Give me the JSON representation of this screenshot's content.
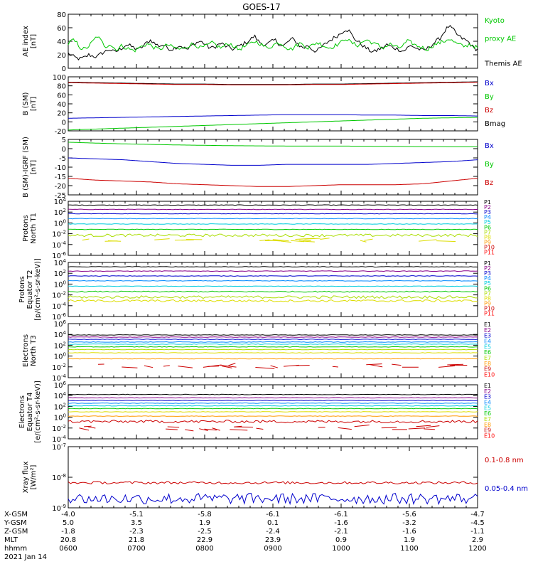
{
  "title": "GOES-17",
  "colors": {
    "black": "#000000",
    "green": "#00c800",
    "blue": "#0000cc",
    "red": "#cc0000",
    "cyan": "#00bbdd",
    "yellow": "#dddd00",
    "orange": "#ff9900"
  },
  "chart_data": [
    {
      "type": "line",
      "id": "ae",
      "ylabel": "AE index\n[nT]",
      "ylim": [
        0,
        80
      ],
      "yticks": [
        "0",
        "20",
        "40",
        "60",
        "80"
      ],
      "ytick_values": [
        0,
        20,
        40,
        60,
        80
      ],
      "legend": [
        {
          "text": "Kyoto",
          "color": "#00c800"
        },
        {
          "text": "proxy AE",
          "color": "#00c800"
        },
        {
          "text": "Themis AE",
          "color": "#000000"
        }
      ],
      "series": [
        {
          "name": "Themis AE",
          "color": "#000000",
          "kind": "noisy",
          "values": [
            22,
            18,
            15,
            14,
            16,
            20,
            18,
            17,
            22,
            25,
            28,
            24,
            26,
            30,
            35,
            33,
            30,
            28,
            32,
            38,
            42,
            36,
            33,
            35,
            30,
            28,
            31,
            34,
            30,
            28,
            35,
            38,
            40,
            36,
            31,
            30,
            34,
            37,
            33,
            30,
            28,
            32,
            35,
            38,
            42,
            48,
            40,
            36,
            35,
            39,
            42,
            36,
            33,
            38,
            44,
            40,
            33,
            30,
            34,
            28,
            25,
            30,
            35,
            40,
            44,
            48,
            52,
            58,
            55,
            45,
            40,
            35,
            30,
            26,
            24,
            28,
            30,
            35,
            32,
            30,
            28,
            25,
            30,
            34,
            30,
            28,
            26,
            30,
            35,
            40,
            45,
            55,
            62,
            58,
            50,
            45,
            42,
            38,
            30,
            28
          ]
        },
        {
          "name": "Kyoto proxy AE",
          "color": "#00c800",
          "kind": "noisy",
          "values": [
            36,
            42,
            38,
            30,
            28,
            33,
            40,
            48,
            40,
            32,
            36,
            30,
            28,
            34,
            30,
            28,
            26,
            30,
            33,
            36,
            34,
            30,
            28,
            31,
            35,
            32,
            30,
            28,
            30,
            33,
            36,
            34,
            30,
            32,
            35,
            38,
            33,
            30,
            34,
            37,
            33,
            28,
            30,
            33,
            36,
            40,
            38,
            34,
            30,
            32,
            36,
            38,
            35,
            30,
            28,
            33,
            37,
            35,
            30,
            34,
            38,
            36,
            33,
            30,
            32,
            35,
            38,
            45,
            40,
            36,
            34,
            38,
            42,
            40,
            36,
            34,
            30,
            33,
            36,
            32,
            30,
            34,
            40,
            38,
            34,
            32,
            30,
            28,
            33,
            36,
            38,
            40,
            44,
            40,
            36,
            34,
            32,
            36,
            33,
            30
          ]
        }
      ]
    },
    {
      "type": "line",
      "id": "bsm",
      "ylabel": "B (SM)\n[nT]",
      "ylim": [
        -20,
        100
      ],
      "yticks": [
        "-20",
        "0",
        "20",
        "40",
        "60",
        "80",
        "100"
      ],
      "ytick_values": [
        -20,
        0,
        20,
        40,
        60,
        80,
        100
      ],
      "legend": [
        {
          "text": "Bx",
          "color": "#0000cc"
        },
        {
          "text": "By",
          "color": "#00c800"
        },
        {
          "text": "Bz",
          "color": "#cc0000"
        },
        {
          "text": "Bmag",
          "color": "#000000"
        }
      ],
      "series": [
        {
          "name": "Bmag",
          "color": "#000000",
          "values": [
            88,
            87,
            86,
            85,
            84,
            84,
            83,
            83,
            83,
            84,
            84,
            85,
            86,
            87,
            88,
            89
          ]
        },
        {
          "name": "Bz",
          "color": "#cc0000",
          "values": [
            87,
            86,
            85,
            84,
            83,
            83,
            82,
            82,
            82,
            83,
            83,
            84,
            85,
            86,
            87,
            88
          ]
        },
        {
          "name": "Bx",
          "color": "#0000cc",
          "values": [
            8,
            9,
            10,
            11,
            12,
            13,
            14,
            15,
            16,
            16,
            16,
            15,
            15,
            14,
            14,
            13
          ]
        },
        {
          "name": "By",
          "color": "#00c800",
          "values": [
            -18,
            -16,
            -14,
            -12,
            -10,
            -8,
            -6,
            -4,
            -2,
            0,
            2,
            4,
            6,
            8,
            9,
            10
          ]
        }
      ]
    },
    {
      "type": "line",
      "id": "bdiff",
      "ylabel": "B (SM)-IGRF (SM)\n[nT]",
      "ylim": [
        -25,
        5
      ],
      "yticks": [
        "-25",
        "-20",
        "-15",
        "-10",
        "-5",
        "0",
        "5"
      ],
      "ytick_values": [
        -25,
        -20,
        -15,
        -10,
        -5,
        0,
        5
      ],
      "legend": [
        {
          "text": "Bx",
          "color": "#0000cc"
        },
        {
          "text": "By",
          "color": "#00c800"
        },
        {
          "text": "Bz",
          "color": "#cc0000"
        }
      ],
      "series": [
        {
          "name": "By",
          "color": "#00c800",
          "values": [
            3.5,
            3,
            2.6,
            2.3,
            2,
            1.8,
            1.6,
            1.5,
            1.4,
            1.4,
            1.4,
            1.3,
            1.2,
            1.1,
            1,
            1
          ]
        },
        {
          "name": "Bx",
          "color": "#0000cc",
          "values": [
            -5,
            -5.5,
            -6,
            -7,
            -8,
            -8.5,
            -9,
            -9,
            -8.5,
            -8.5,
            -8.5,
            -8.5,
            -8,
            -7.5,
            -7,
            -6
          ]
        },
        {
          "name": "Bz",
          "color": "#cc0000",
          "values": [
            -16,
            -17,
            -17.5,
            -18,
            -19,
            -19.5,
            -20,
            -20.5,
            -20.5,
            -20,
            -19.5,
            -19.5,
            -19.5,
            -19,
            -17.5,
            -16
          ]
        }
      ]
    },
    {
      "type": "line",
      "id": "pnorth",
      "log": true,
      "ylabel": "Protons\nNorth T1",
      "ylim": [
        -6,
        4
      ],
      "yticks": [
        "10^4",
        "10^2",
        "10^0",
        "10^-2",
        "10^-4",
        "10^-6"
      ],
      "ytick_values": [
        4,
        2,
        0,
        -2,
        -4,
        -6
      ],
      "legend": [
        {
          "text": "P1",
          "color": "#000000"
        },
        {
          "text": "P2",
          "color": "#880088"
        },
        {
          "text": "P3",
          "color": "#0000cc"
        },
        {
          "text": "P4",
          "color": "#0088ff"
        },
        {
          "text": "P5",
          "color": "#00ccdd"
        },
        {
          "text": "P6",
          "color": "#00c800"
        },
        {
          "text": "P7",
          "color": "#aadd00"
        },
        {
          "text": "P8",
          "color": "#dddd00"
        },
        {
          "text": "P9",
          "color": "#ff9900"
        },
        {
          "text": "P10",
          "color": "#cc0000"
        },
        {
          "text": "P11",
          "color": "#ff0000"
        }
      ],
      "levels": [
        {
          "color": "#000000",
          "level": 3.3,
          "noise": 0.05
        },
        {
          "color": "#880088",
          "level": 2.5,
          "noise": 0.05
        },
        {
          "color": "#0000cc",
          "level": 1.7,
          "noise": 0.05
        },
        {
          "color": "#0088ff",
          "level": 0.8,
          "noise": 0.05
        },
        {
          "color": "#00ccdd",
          "level": -0.2,
          "noise": 0.05
        },
        {
          "color": "#00c800",
          "level": -1.2,
          "noise": 0.05
        },
        {
          "color": "#aadd00",
          "level": -2.3,
          "noise": 0.25
        },
        {
          "color": "#dddd00",
          "level": -3.2,
          "noise": 0.2,
          "sparse": true
        }
      ]
    },
    {
      "type": "line",
      "id": "pequator",
      "log": true,
      "ylabel": "Protons\nEquator T2\n[p/(cm²-s-sr-keV)]",
      "ylim": [
        -6,
        4
      ],
      "yticks": [
        "10^4",
        "10^2",
        "10^0",
        "10^-2",
        "10^-4",
        "10^-6"
      ],
      "ytick_values": [
        4,
        2,
        0,
        -2,
        -4,
        -6
      ],
      "legend": [
        {
          "text": "P1",
          "color": "#000000"
        },
        {
          "text": "P2",
          "color": "#880088"
        },
        {
          "text": "P3",
          "color": "#0000cc"
        },
        {
          "text": "P4",
          "color": "#0088ff"
        },
        {
          "text": "P5",
          "color": "#00ccdd"
        },
        {
          "text": "P6",
          "color": "#00c800"
        },
        {
          "text": "P7",
          "color": "#aadd00"
        },
        {
          "text": "P8",
          "color": "#dddd00"
        },
        {
          "text": "P9",
          "color": "#ff9900"
        },
        {
          "text": "P10",
          "color": "#cc0000"
        },
        {
          "text": "P11",
          "color": "#ff0000"
        }
      ],
      "levels": [
        {
          "color": "#000000",
          "level": 3.2,
          "noise": 0.05
        },
        {
          "color": "#880088",
          "level": 2.4,
          "noise": 0.05
        },
        {
          "color": "#0000cc",
          "level": 1.5,
          "noise": 0.05
        },
        {
          "color": "#0088ff",
          "level": 0.6,
          "noise": 0.05
        },
        {
          "color": "#00ccdd",
          "level": -0.4,
          "noise": 0.05
        },
        {
          "color": "#00c800",
          "level": -1.4,
          "noise": 0.1
        },
        {
          "color": "#aadd00",
          "level": -2.4,
          "noise": 0.25
        },
        {
          "color": "#dddd00",
          "level": -3.1,
          "noise": 0.2
        }
      ]
    },
    {
      "type": "line",
      "id": "enorth",
      "log": true,
      "ylabel": "Electrons\nNorth T3",
      "ylim": [
        -4,
        6
      ],
      "yticks": [
        "10^6",
        "10^4",
        "10^2",
        "10^0",
        "10^-2",
        "10^-4"
      ],
      "ytick_values": [
        6,
        4,
        2,
        0,
        -2,
        -4
      ],
      "legend": [
        {
          "text": "E1",
          "color": "#000000"
        },
        {
          "text": "E2",
          "color": "#880088"
        },
        {
          "text": "E3",
          "color": "#0000cc"
        },
        {
          "text": "E4",
          "color": "#0088ff"
        },
        {
          "text": "E5",
          "color": "#00ccdd"
        },
        {
          "text": "E6",
          "color": "#00c800"
        },
        {
          "text": "E7",
          "color": "#aadd00"
        },
        {
          "text": "E8",
          "color": "#ff9900"
        },
        {
          "text": "E9",
          "color": "#cc0000"
        },
        {
          "text": "E10",
          "color": "#ff0000"
        }
      ],
      "levels": [
        {
          "color": "#000000",
          "level": 3.9,
          "noise": 0.05
        },
        {
          "color": "#880088",
          "level": 3.5,
          "noise": 0.05
        },
        {
          "color": "#0000cc",
          "level": 3.1,
          "noise": 0.05
        },
        {
          "color": "#0088ff",
          "level": 2.6,
          "noise": 0.05
        },
        {
          "color": "#00ccdd",
          "level": 2.2,
          "noise": 0.05
        },
        {
          "color": "#00c800",
          "level": 1.7,
          "noise": 0.05
        },
        {
          "color": "#aadd00",
          "level": 1.2,
          "noise": 0.05
        },
        {
          "color": "#dddd00",
          "level": 0.6,
          "noise": 0.05
        },
        {
          "color": "#ff9900",
          "level": -0.5,
          "noise": 0.05
        },
        {
          "color": "#cc0000",
          "level": -1.8,
          "noise": 0.3,
          "sparse": true
        }
      ]
    },
    {
      "type": "line",
      "id": "eequator",
      "log": true,
      "ylabel": "Electrons\nEquator T4\n[e/(cm²-s-sr-keV)]",
      "ylim": [
        -4,
        6
      ],
      "yticks": [
        "10^6",
        "10^4",
        "10^2",
        "10^0",
        "10^-2",
        "10^-4"
      ],
      "ytick_values": [
        6,
        4,
        2,
        0,
        -2,
        -4
      ],
      "legend": [
        {
          "text": "E1",
          "color": "#000000"
        },
        {
          "text": "E2",
          "color": "#880088"
        },
        {
          "text": "E3",
          "color": "#0000cc"
        },
        {
          "text": "E4",
          "color": "#0088ff"
        },
        {
          "text": "E5",
          "color": "#00ccdd"
        },
        {
          "text": "E6",
          "color": "#00c800"
        },
        {
          "text": "E7",
          "color": "#aadd00"
        },
        {
          "text": "E8",
          "color": "#ff9900"
        },
        {
          "text": "E9",
          "color": "#cc0000"
        },
        {
          "text": "E10",
          "color": "#ff0000"
        }
      ],
      "levels": [
        {
          "color": "#000000",
          "level": 4.2,
          "noise": 0.05
        },
        {
          "color": "#880088",
          "level": 3.6,
          "noise": 0.05
        },
        {
          "color": "#0000cc",
          "level": 3.1,
          "noise": 0.05
        },
        {
          "color": "#0088ff",
          "level": 2.6,
          "noise": 0.05
        },
        {
          "color": "#00ccdd",
          "level": 2.1,
          "noise": 0.05
        },
        {
          "color": "#00c800",
          "level": 1.6,
          "noise": 0.05
        },
        {
          "color": "#dddd00",
          "level": 1.0,
          "noise": 0.05
        },
        {
          "color": "#ff9900",
          "level": 0.2,
          "noise": 0.05
        },
        {
          "color": "#cc0000",
          "level": -0.8,
          "noise": 0.25
        },
        {
          "color": "#cc0000",
          "level": -2.0,
          "noise": 0.3,
          "sparse": true
        }
      ]
    },
    {
      "type": "line",
      "id": "xray",
      "log": true,
      "ylabel": "Xray flux\n[W/m²]",
      "ylim": [
        -9,
        -7
      ],
      "yticks": [
        "10^-7",
        "10^-8",
        "10^-9"
      ],
      "ytick_values": [
        -7,
        -8,
        -9
      ],
      "legend": [
        {
          "text": "0.1-0.8 nm",
          "color": "#cc0000"
        },
        {
          "text": "0.05-0.4 nm",
          "color": "#0000cc"
        }
      ],
      "levels": [
        {
          "color": "#cc0000",
          "level": -8.18,
          "noise": 0.04
        },
        {
          "color": "#0000cc",
          "level": -8.7,
          "noise": 0.18
        }
      ]
    }
  ],
  "x_axis": {
    "row_labels": [
      "X-GSM",
      "Y-GSM",
      "Z-GSM",
      "MLT",
      "hhmm",
      "2021 Jan 14"
    ],
    "columns": [
      {
        "values": [
          "-4.0",
          "5.0",
          "-1.8",
          "20.8",
          "0600"
        ]
      },
      {
        "values": [
          "-5.1",
          "3.5",
          "-2.3",
          "21.8",
          "0700"
        ]
      },
      {
        "values": [
          "-5.8",
          "1.9",
          "-2.5",
          "22.9",
          "0800"
        ]
      },
      {
        "values": [
          "-6.1",
          "0.1",
          "-2.4",
          "23.9",
          "0900"
        ]
      },
      {
        "values": [
          "-6.1",
          "-1.6",
          "-2.1",
          "0.9",
          "1000"
        ]
      },
      {
        "values": [
          "-5.6",
          "-3.2",
          "-1.6",
          "1.9",
          "1100"
        ]
      },
      {
        "values": [
          "-4.7",
          "-4.5",
          "-1.1",
          "2.9",
          "1200"
        ]
      }
    ]
  }
}
